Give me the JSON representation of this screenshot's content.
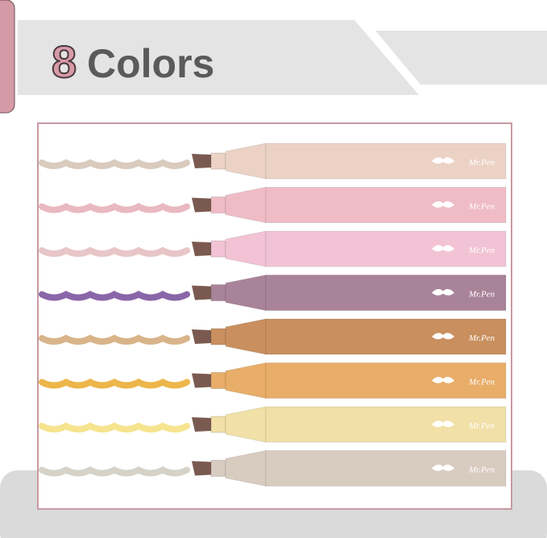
{
  "header": {
    "number": "8",
    "title": "Colors"
  },
  "markers": [
    {
      "label": "Mr.Pen",
      "color": "#ecd2c5",
      "ink": "#d9cbbd"
    },
    {
      "label": "Mr.Pen",
      "color": "#efbcc6",
      "ink": "#eab8c0"
    },
    {
      "label": "Mr.Pen",
      "color": "#f2c3d4",
      "ink": "#e8c6c8"
    },
    {
      "label": "Mr.Pen",
      "color": "#a98399",
      "ink": "#8a66a8"
    },
    {
      "label": "Mr.Pen",
      "color": "#c98f5e",
      "ink": "#d8b48a"
    },
    {
      "label": "Mr.Pen",
      "color": "#e8ad68",
      "ink": "#edb64a"
    },
    {
      "label": "Mr.Pen",
      "color": "#f1e0a7",
      "ink": "#f6e48e"
    },
    {
      "label": "Mr.Pen",
      "color": "#d8cbc0",
      "ink": "#d5d3c8"
    }
  ]
}
